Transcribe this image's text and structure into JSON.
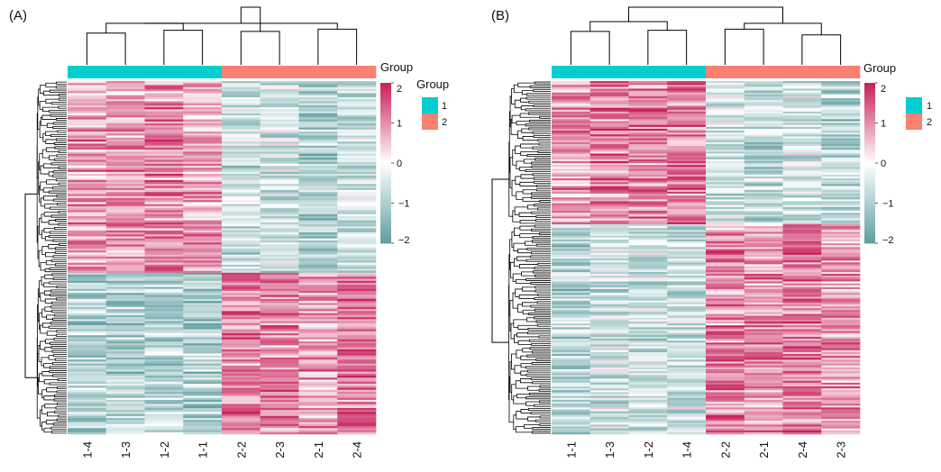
{
  "colors": {
    "group1": "#00CED1",
    "group2": "#FA8072",
    "low": "#5F9EA0",
    "mid": "#FFFFFF",
    "high": "#C71E5A",
    "dendrogram": "#000000"
  },
  "chart_data": [
    {
      "type": "heatmap",
      "panel_label": "(A)",
      "annotation_label": "Group",
      "legend_title": "Group",
      "legend_items": [
        "1",
        "2"
      ],
      "color_scale": {
        "range": [
          -2,
          2
        ],
        "ticks": [
          "2",
          "1",
          "0",
          "−1",
          "−2"
        ],
        "tick_values": [
          2,
          1,
          0,
          -1,
          -2
        ]
      },
      "columns": [
        "1-4",
        "1-3",
        "1-2",
        "1-1",
        "2-2",
        "2-3",
        "2-1",
        "2-4"
      ],
      "column_groups": [
        1,
        1,
        1,
        1,
        2,
        2,
        2,
        2
      ],
      "row_clusters": [
        {
          "rows": 95,
          "group1_mean": 1.0,
          "group2_mean": -0.8
        },
        {
          "rows": 80,
          "group1_mean": -0.8,
          "group2_mean": 1.0
        }
      ]
    },
    {
      "type": "heatmap",
      "panel_label": "(B)",
      "annotation_label": "Group",
      "legend_title": "Group",
      "legend_items": [
        "1",
        "2"
      ],
      "color_scale": {
        "range": [
          -2,
          2
        ],
        "ticks": [
          "2",
          "1",
          "0",
          "−1",
          "−2"
        ],
        "tick_values": [
          2,
          1,
          0,
          -1,
          -2
        ]
      },
      "columns": [
        "1-1",
        "1-3",
        "1-2",
        "1-4",
        "2-2",
        "2-1",
        "2-4",
        "2-3"
      ],
      "column_groups": [
        1,
        1,
        1,
        1,
        2,
        2,
        2,
        2
      ],
      "row_clusters": [
        {
          "rows": 75,
          "group1_mean": 1.0,
          "group2_mean": -0.7
        },
        {
          "rows": 110,
          "group1_mean": -0.7,
          "group2_mean": 1.0
        }
      ]
    }
  ]
}
